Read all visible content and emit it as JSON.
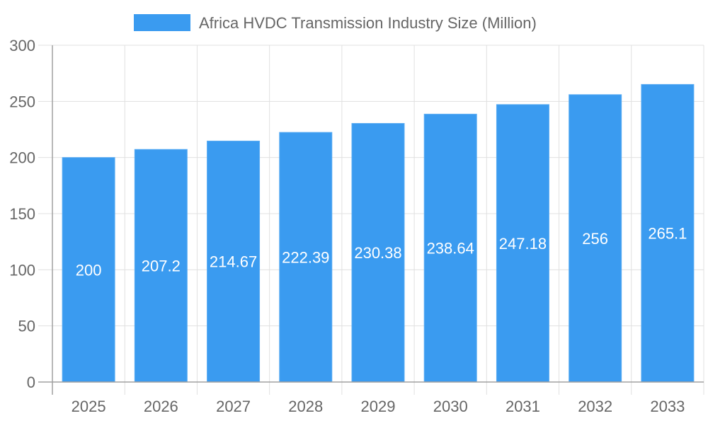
{
  "chart_data": {
    "type": "bar",
    "title": "",
    "xlabel": "",
    "ylabel": "",
    "categories": [
      "2025",
      "2026",
      "2027",
      "2028",
      "2029",
      "2030",
      "2031",
      "2032",
      "2033"
    ],
    "series": [
      {
        "name": "Africa HVDC Transmission Industry Size (Million)",
        "values": [
          200,
          207.2,
          214.67,
          222.39,
          230.38,
          238.64,
          247.18,
          256,
          265.1
        ],
        "data_labels": [
          "200",
          "207.2",
          "214.67",
          "222.39",
          "230.38",
          "238.64",
          "247.18",
          "256",
          "265.1"
        ]
      }
    ],
    "ylim": [
      0,
      300
    ],
    "yticks": [
      "0",
      "50",
      "100",
      "150",
      "200",
      "250",
      "300"
    ],
    "grid": true,
    "legend_position": "top",
    "colors": {
      "bar": "#3a9bf0",
      "bar_border": "#5aacf3",
      "grid": "#e0e0e0",
      "axis": "#a0a0a0",
      "tick_text": "#666666",
      "label_text": "#ffffff"
    }
  }
}
